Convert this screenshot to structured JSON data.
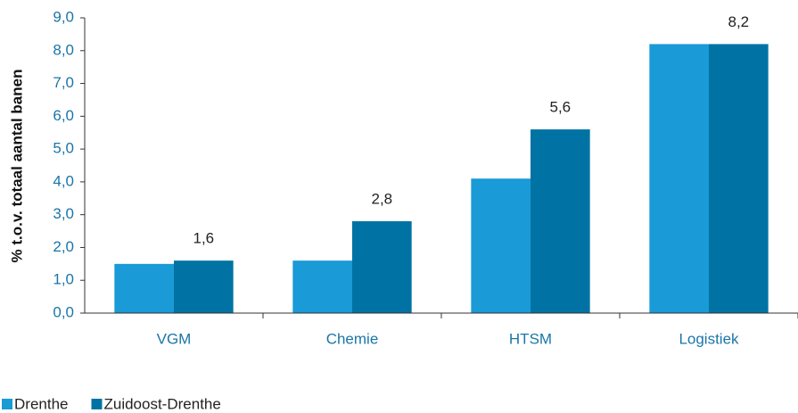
{
  "chart_data": {
    "type": "bar",
    "y_label": "% t.o.v. totaal aantal banen",
    "categories": [
      "VGM",
      "Chemie",
      "HTSM",
      "Logistiek"
    ],
    "series": [
      {
        "name": "Drenthe",
        "color": "#1a9ad6",
        "values": [
          1.5,
          1.6,
          4.1,
          8.2
        ]
      },
      {
        "name": "Zuidoost-Drenthe",
        "color": "#0073a4",
        "values": [
          1.6,
          2.8,
          5.6,
          8.2
        ],
        "value_labels": [
          "1,6",
          "2,8",
          "5,6",
          "8,2"
        ]
      }
    ],
    "ylim": [
      0,
      9
    ],
    "yticks": [
      {
        "value": 0,
        "label": "0,0"
      },
      {
        "value": 1,
        "label": "1,0"
      },
      {
        "value": 2,
        "label": "2,0"
      },
      {
        "value": 3,
        "label": "3,0"
      },
      {
        "value": 4,
        "label": "4,0"
      },
      {
        "value": 5,
        "label": "5,0"
      },
      {
        "value": 6,
        "label": "6,0"
      },
      {
        "value": 7,
        "label": "7,0"
      },
      {
        "value": 8,
        "label": "8,0"
      },
      {
        "value": 9,
        "label": "9,0"
      }
    ],
    "grid": false,
    "legend": "bottom-left"
  }
}
